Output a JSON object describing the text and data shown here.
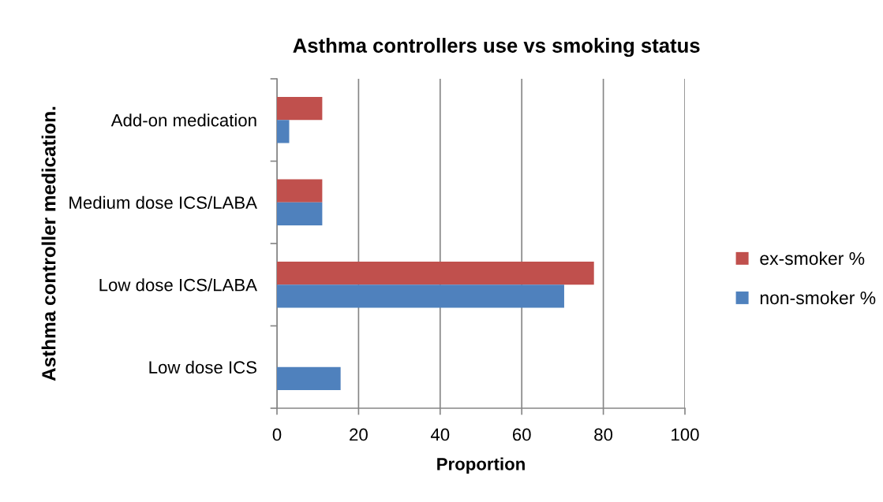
{
  "chart_data": {
    "type": "bar",
    "orientation": "horizontal",
    "title": "Asthma controllers use vs smoking status",
    "xlabel": "Proportion",
    "ylabel": "Asthma controller medication.",
    "categories": [
      "Add-on medication",
      "Medium dose ICS/LABA",
      "Low dose ICS/LABA",
      "Low dose ICS"
    ],
    "series": [
      {
        "name": "ex-smoker %",
        "color": "#c0504d",
        "values": [
          11.1,
          11.1,
          77.7,
          null
        ]
      },
      {
        "name": "non-smoker %",
        "color": "#4f81bd",
        "values": [
          3.0,
          11.1,
          70.4,
          15.6
        ]
      }
    ],
    "xlim": [
      0,
      100
    ],
    "xticks": [
      0,
      20,
      40,
      60,
      80,
      100
    ],
    "grid": "x",
    "legend": "right"
  }
}
